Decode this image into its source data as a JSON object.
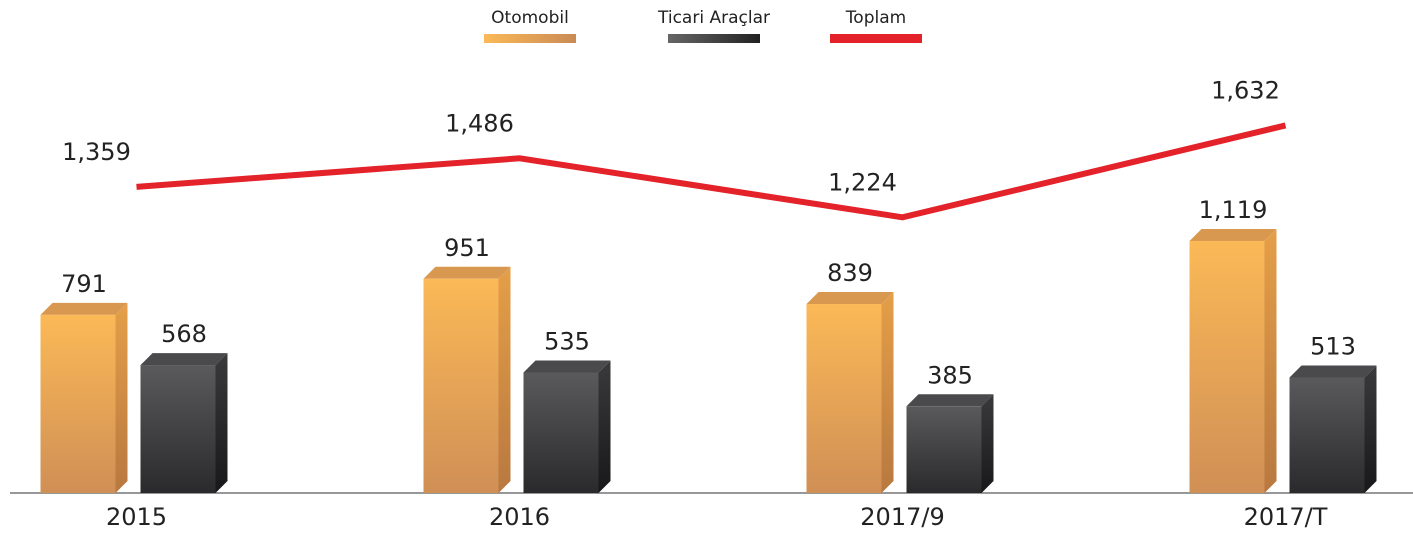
{
  "chart_data": {
    "type": "bar",
    "categories": [
      "2015",
      "2016",
      "2017/9",
      "2017/T"
    ],
    "series": [
      {
        "name": "Otomobil",
        "type": "bar",
        "color": "#e8a85a",
        "values": [
          791,
          951,
          839,
          1119
        ],
        "value_labels": [
          "791",
          "951",
          "839",
          "1,119"
        ]
      },
      {
        "name": "Ticari Araçlar",
        "type": "bar",
        "color": "#3a3a3c",
        "values": [
          568,
          535,
          385,
          513
        ]
      },
      {
        "name": "Toplam",
        "type": "line",
        "color": "#e3222a",
        "values": [
          1359,
          1486,
          1224,
          1632
        ],
        "value_labels": [
          "1,359",
          "1,486",
          "1,224",
          "1,632"
        ]
      }
    ],
    "ylim": [
      0,
      2100
    ]
  }
}
